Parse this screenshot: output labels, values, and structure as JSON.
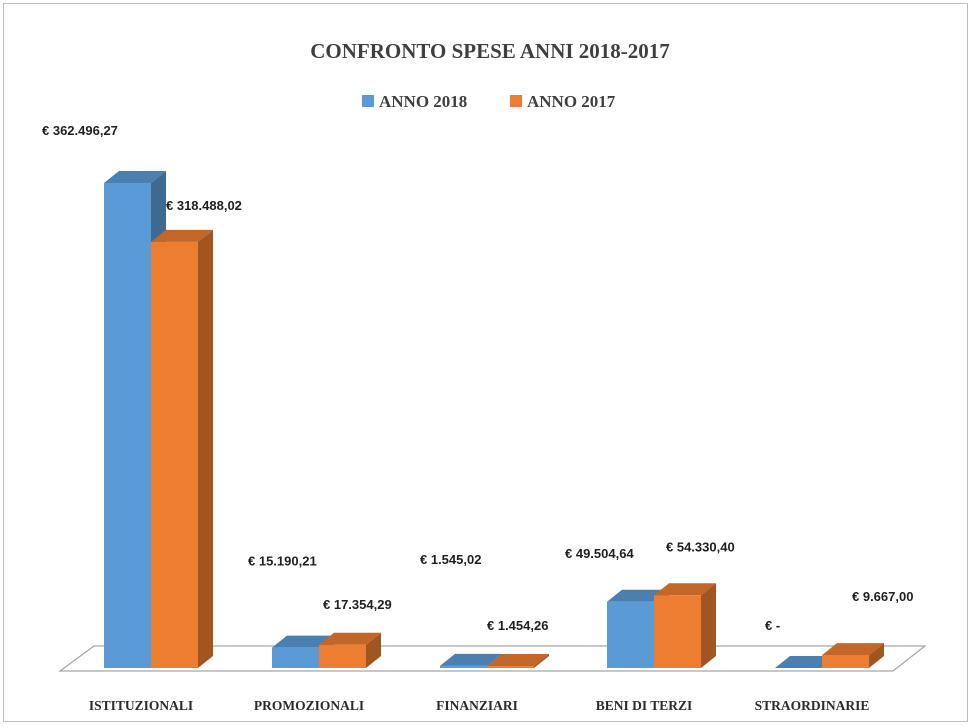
{
  "chart_data": {
    "type": "bar",
    "title": "CONFRONTO SPESE ANNI 2018-2017",
    "legend_position": "top",
    "categories": [
      "ISTITUZIONALI",
      "PROMOZIONALI",
      "FINANZIARI",
      "BENI DI TERZI",
      "STRAORDINARIE"
    ],
    "series": [
      {
        "name": "ANNO 2018",
        "color": "#5b9bd5",
        "values": [
          362496.27,
          15190.21,
          1545.02,
          49504.64,
          0
        ],
        "labels": [
          "€ 362.496,27",
          "€ 15.190,21",
          "€ 1.545,02",
          "€ 49.504,64",
          "€ -"
        ]
      },
      {
        "name": "ANNO 2017",
        "color": "#ed7d31",
        "values": [
          318488.02,
          17354.29,
          1454.26,
          54330.4,
          9667.0
        ],
        "labels": [
          "€ 318.488,02",
          "€ 17.354,29",
          "€ 1.454,26",
          "€ 54.330,40",
          "€ 9.667,00"
        ]
      }
    ],
    "ylim": [
      0,
      362496.27
    ],
    "grid": false,
    "style": "3d-column"
  }
}
